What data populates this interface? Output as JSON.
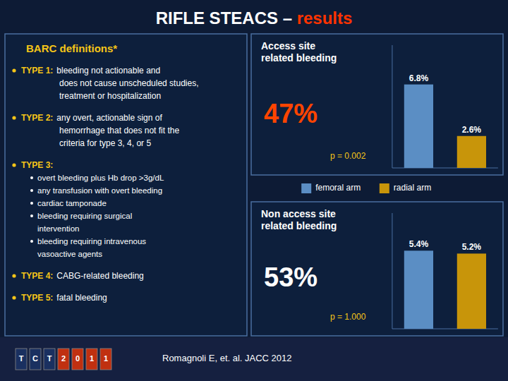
{
  "title": "RIFLE STEACS – results",
  "annotations": [
    {
      "text": "BARC definitions*",
      "items": [
        {
          "label": "TYPE 1:",
          "text": "bleeding not actionable and\ndoes not cause unscheduled studies,\ntreatment or hospitalization"
        },
        {
          "label": "TYPE 2:",
          "text": "any overt, actionable sign of\nhemorrhage that does not fit the\ncriteria for type 3, 4, or 5"
        },
        {
          "label": "TYPE 3:",
          "items": [
            "overt bleeding plus Hb drop >3g/dL",
            "any transfusion with overt bleeding",
            "cardiac tamponade",
            "bleeding requiring surgical\nintervention",
            "bleeding requiring intravenous\nvasoactive agents"
          ]
        },
        {
          "label": "TYPE 4:",
          "text": "CABG-related bleeding"
        },
        {
          "label": "TYPE 5:",
          "text": "fatal bleeding"
        }
      ]
    },
    {
      "text": "TCT",
      "color": "#1a3060"
    },
    {
      "text": "2011",
      "color": "#c03010"
    },
    {
      "text": "Romagnoli E, et. al. JACC 2012"
    }
  ],
  "chart_data": [
    {
      "type": "bar",
      "title": "Access site\nrelated bleeding",
      "categories": [
        "femoral arm",
        "radial arm"
      ],
      "values": [
        6.8,
        2.6
      ],
      "value_labels": [
        "6.8%",
        "2.6%"
      ],
      "colors": [
        "#5b8ec4",
        "#c8950a"
      ],
      "ylim": [
        0,
        10
      ],
      "data_labels": true,
      "tick_labels": false,
      "legend": "bottom",
      "annotations": [
        {
          "text": "47%",
          "color": "#ff4400"
        },
        {
          "text": "p = 0.002",
          "color": "#f5c518"
        }
      ]
    },
    {
      "type": "bar",
      "title": "Non access site\nrelated bleeding",
      "categories": [
        null,
        null
      ],
      "values": [
        5.4,
        5.2
      ],
      "value_labels": [
        "5.4%",
        "5.2%"
      ],
      "colors": [
        "#5b8ec4",
        "#c8950a"
      ],
      "ylim": [
        0,
        8
      ],
      "data_labels": true,
      "tick_labels": false,
      "annotations": [
        {
          "text": "53%",
          "color": "#ffffff"
        },
        {
          "text": "p = 1.000",
          "color": "#f5c518"
        }
      ]
    }
  ]
}
